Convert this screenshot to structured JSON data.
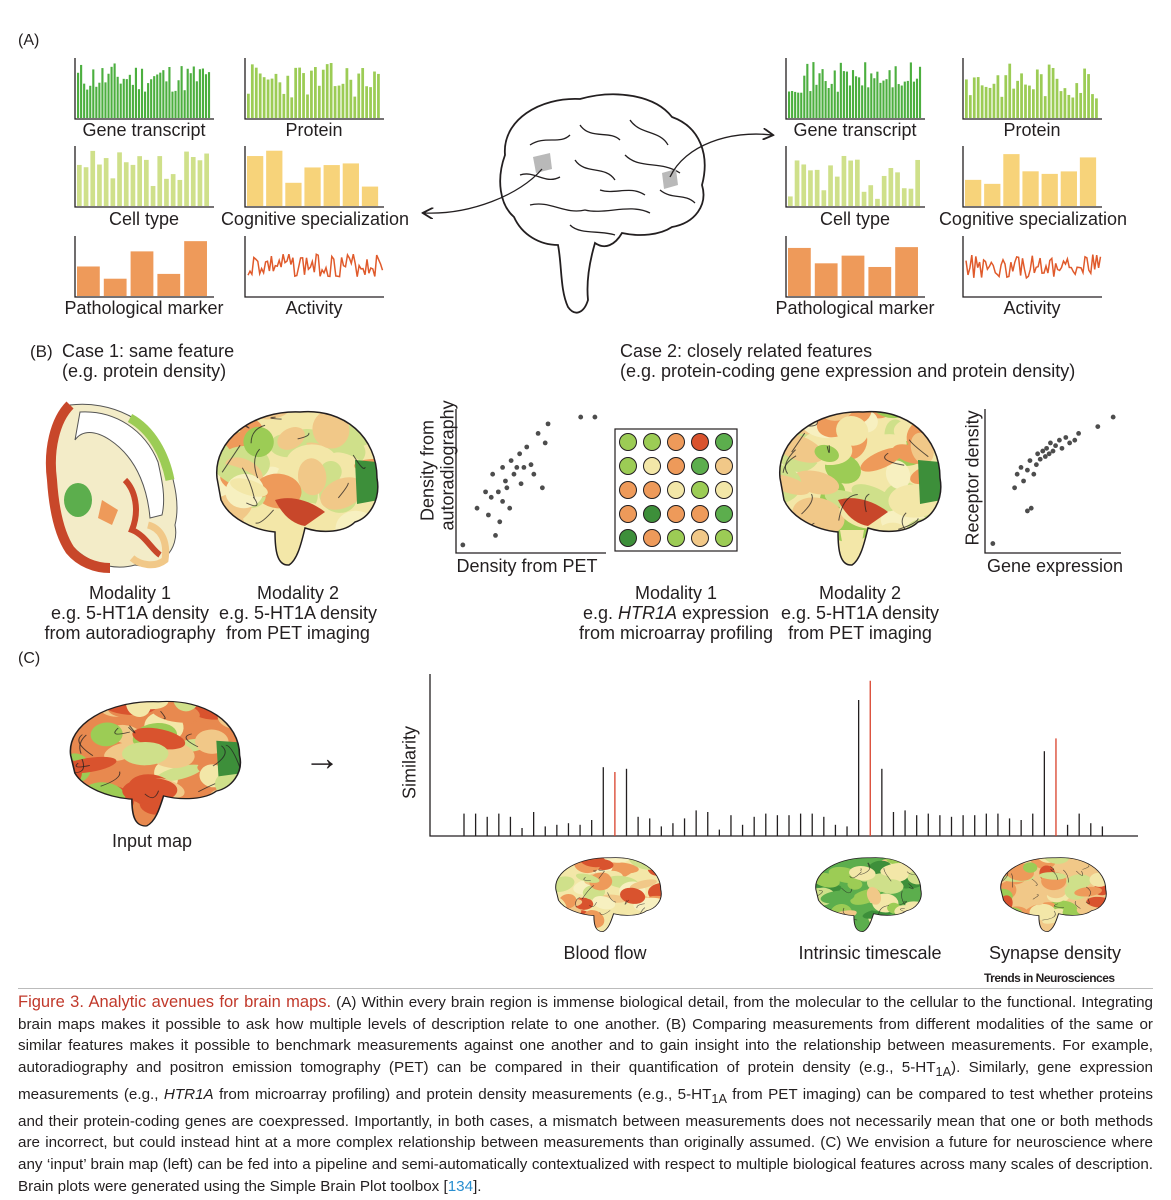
{
  "panel_a": {
    "letter": "(A)",
    "left_labels": [
      "Gene transcript",
      "Protein",
      "Cell type",
      "Cognitive specialization",
      "Pathological marker",
      "Activity"
    ],
    "right_labels": [
      "Gene transcript",
      "Protein",
      "Cell type",
      "Cognitive specialization",
      "Pathological marker",
      "Activity"
    ],
    "colors": {
      "gene": "#4caf3f",
      "protein": "#9ccc55",
      "cell": "#cfe08a",
      "cognitive": "#f7d37a",
      "patho": "#ee9a5a",
      "activity": "#e05a2b"
    }
  },
  "panel_b": {
    "letter": "(B)",
    "case1_title": "Case 1: same feature",
    "case1_sub": "(e.g. protein density)",
    "case2_title": "Case 2: closely related features",
    "case2_sub": "(e.g. protein-coding gene expression and protein density)",
    "scatter1": {
      "ylabel_1": "Density from",
      "ylabel_2": "autoradiography",
      "xlabel": "Density from PET"
    },
    "scatter2": {
      "ylabel": "Receptor density",
      "xlabel": "Gene expression"
    },
    "mod1a": {
      "line1": "Modality 1",
      "line2": "e.g. 5-HT1A density",
      "line3": "from autoradiography"
    },
    "mod2a": {
      "line1": "Modality 2",
      "line2": "e.g. 5-HT1A density",
      "line3": "from PET imaging"
    },
    "mod1b": {
      "line1": "Modality 1",
      "line2_pre": "e.g. ",
      "line2_it": "HTR1A",
      "line2_post": " expression",
      "line3": "from microarray profiling"
    },
    "mod2b": {
      "line1": "Modality 2",
      "line2": "e.g. 5-HT1A density",
      "line3": "from PET imaging"
    }
  },
  "panel_c": {
    "letter": "(C)",
    "input_label": "Input map",
    "ylabel": "Similarity",
    "arrow": "→",
    "brains": [
      "Blood flow",
      "Intrinsic timescale",
      "Synapse density"
    ],
    "bars": [
      0.14,
      0.14,
      0.12,
      0.14,
      0.12,
      0.05,
      0.15,
      0.06,
      0.07,
      0.08,
      0.07,
      0.1,
      0.43,
      0.4,
      0.42,
      0.12,
      0.11,
      0.06,
      0.08,
      0.11,
      0.16,
      0.15,
      0.04,
      0.13,
      0.07,
      0.12,
      0.14,
      0.13,
      0.13,
      0.14,
      0.14,
      0.12,
      0.07,
      0.06,
      0.85,
      0.97,
      0.42,
      0.15,
      0.16,
      0.13,
      0.14,
      0.13,
      0.12,
      0.13,
      0.13,
      0.14,
      0.14,
      0.11,
      0.1,
      0.14,
      0.53,
      0.61,
      0.07,
      0.14,
      0.08,
      0.06
    ],
    "highlight": [
      13,
      35,
      51
    ]
  },
  "chart_data": [
    {
      "type": "scatter",
      "xlabel": "Density from PET",
      "ylabel": "Density from autoradiography",
      "points": [
        [
          0.02,
          0.03
        ],
        [
          0.12,
          0.3
        ],
        [
          0.18,
          0.42
        ],
        [
          0.2,
          0.25
        ],
        [
          0.22,
          0.38
        ],
        [
          0.23,
          0.55
        ],
        [
          0.25,
          0.1
        ],
        [
          0.27,
          0.42
        ],
        [
          0.28,
          0.2
        ],
        [
          0.3,
          0.35
        ],
        [
          0.3,
          0.6
        ],
        [
          0.32,
          0.5
        ],
        [
          0.33,
          0.45
        ],
        [
          0.35,
          0.3
        ],
        [
          0.36,
          0.65
        ],
        [
          0.38,
          0.55
        ],
        [
          0.4,
          0.6
        ],
        [
          0.42,
          0.7
        ],
        [
          0.43,
          0.48
        ],
        [
          0.45,
          0.6
        ],
        [
          0.47,
          0.75
        ],
        [
          0.5,
          0.62
        ],
        [
          0.52,
          0.55
        ],
        [
          0.55,
          0.85
        ],
        [
          0.58,
          0.45
        ],
        [
          0.6,
          0.78
        ],
        [
          0.62,
          0.92
        ],
        [
          0.85,
          0.97
        ],
        [
          0.95,
          0.97
        ]
      ]
    },
    {
      "type": "scatter",
      "xlabel": "Gene expression",
      "ylabel": "Receptor density",
      "points": [
        [
          0.03,
          0.04
        ],
        [
          0.2,
          0.45
        ],
        [
          0.22,
          0.55
        ],
        [
          0.25,
          0.6
        ],
        [
          0.27,
          0.5
        ],
        [
          0.3,
          0.58
        ],
        [
          0.3,
          0.28
        ],
        [
          0.32,
          0.65
        ],
        [
          0.33,
          0.3
        ],
        [
          0.35,
          0.55
        ],
        [
          0.37,
          0.62
        ],
        [
          0.38,
          0.7
        ],
        [
          0.4,
          0.66
        ],
        [
          0.42,
          0.72
        ],
        [
          0.44,
          0.68
        ],
        [
          0.45,
          0.74
        ],
        [
          0.47,
          0.7
        ],
        [
          0.48,
          0.78
        ],
        [
          0.5,
          0.72
        ],
        [
          0.52,
          0.76
        ],
        [
          0.55,
          0.8
        ],
        [
          0.57,
          0.74
        ],
        [
          0.6,
          0.82
        ],
        [
          0.63,
          0.78
        ],
        [
          0.67,
          0.8
        ],
        [
          0.7,
          0.85
        ],
        [
          0.85,
          0.9
        ],
        [
          0.97,
          0.97
        ]
      ]
    },
    {
      "type": "bar",
      "ylabel": "Similarity",
      "series": "panel_c.bars"
    }
  ],
  "caption": {
    "title": "Figure 3. Analytic avenues for brain maps.",
    "p1": " (A) Within every brain region is immense biological detail, from the molecular to the cellular to the functional. Integrating brain maps makes it possible to ask how multiple levels of description relate to one another. (B) Comparing measurements from different modalities of the same or similar features makes it possible to benchmark measurements against one another and to gain insight into the relationship between measurements. For example, autoradiography and positron emission tomography (PET) can be compared in their quantification of protein density (e.g., 5-HT",
    "sub1": "1A",
    "p2": "). Similarly, gene expression measurements (e.g., ",
    "it1": "HTR1A",
    "p3": " from microarray profiling) and protein density measurements (e.g., 5-HT",
    "sub2": "1A",
    "p4": " from PET imaging) can be compared to test whether proteins and their protein-coding genes are coexpressed. Importantly, in both cases, a mismatch between measurements does not necessarily mean that one or both methods are incorrect, but could instead hint at a more complex relationship between measurements than originally assumed. (C) We envision a future for neuroscience where any ‘input’ brain map (left) can be fed into a pipeline and semi-automatically contextualized with respect to multiple biological features across many scales of description. Brain plots were generated using the Simple Brain Plot toolbox [",
    "ref": "134",
    "p5": "]."
  },
  "brand": "Trends in Neurosciences"
}
